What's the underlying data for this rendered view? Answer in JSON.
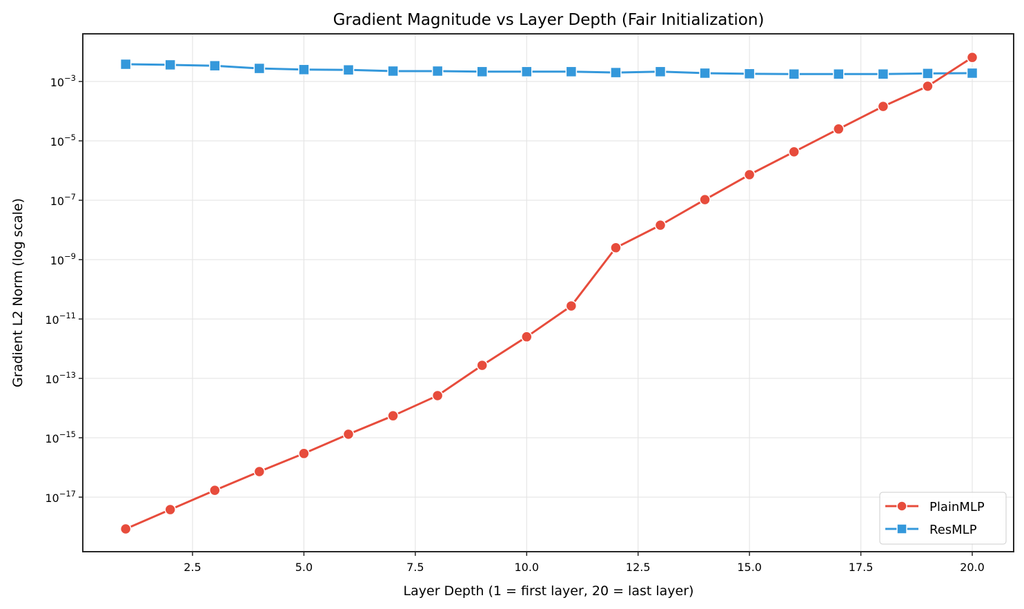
{
  "chart_data": {
    "type": "line",
    "title": "Gradient Magnitude vs Layer Depth (Fair Initialization)",
    "xlabel": "Layer Depth (1 = first layer, 20 = last layer)",
    "ylabel": "Gradient L2 Norm (log scale)",
    "yscale": "log",
    "x": [
      1,
      2,
      3,
      4,
      5,
      6,
      7,
      8,
      9,
      10,
      11,
      12,
      13,
      14,
      15,
      16,
      17,
      18,
      19,
      20
    ],
    "xticks": [
      "2.5",
      "5.0",
      "7.5",
      "10.0",
      "12.5",
      "15.0",
      "17.5",
      "20.0"
    ],
    "xtick_values": [
      2.5,
      5.0,
      7.5,
      10.0,
      12.5,
      15.0,
      17.5,
      20.0
    ],
    "yticks": [
      {
        "base": "10",
        "exp": "−3",
        "value": 0.001
      },
      {
        "base": "10",
        "exp": "−5",
        "value": 1e-05
      },
      {
        "base": "10",
        "exp": "−7",
        "value": 1e-07
      },
      {
        "base": "10",
        "exp": "−9",
        "value": 1e-09
      },
      {
        "base": "10",
        "exp": "−11",
        "value": 1e-11
      },
      {
        "base": "10",
        "exp": "−13",
        "value": 1e-13
      },
      {
        "base": "10",
        "exp": "−15",
        "value": 1e-15
      },
      {
        "base": "10",
        "exp": "−17",
        "value": 1e-17
      }
    ],
    "xlim": [
      0.05,
      20.95
    ],
    "ylim_log10": [
      -18.6,
      -1.4
    ],
    "grid": true,
    "legend_position": "lower right",
    "series": [
      {
        "name": "PlainMLP",
        "color": "#e74c3c",
        "marker": "circle",
        "log10_values": [
          -18.07,
          -17.42,
          -16.77,
          -16.14,
          -15.53,
          -14.88,
          -14.26,
          -13.58,
          -12.56,
          -11.6,
          -10.56,
          -8.6,
          -7.84,
          -6.98,
          -6.14,
          -5.37,
          -4.6,
          -3.84,
          -3.16,
          -2.19
        ],
        "values": [
          8.5e-19,
          3.8e-18,
          1.7e-17,
          7.2e-17,
          3e-16,
          1.3e-15,
          5.5e-15,
          2.6e-14,
          2.8e-13,
          2.5e-12,
          2.8e-11,
          2.5e-09,
          1.4e-08,
          1e-07,
          7.2e-07,
          4.3e-06,
          2.5e-05,
          0.00014,
          0.00069,
          0.0065
        ]
      },
      {
        "name": "ResMLP",
        "color": "#3498db",
        "marker": "square",
        "log10_values": [
          -2.42,
          -2.44,
          -2.47,
          -2.56,
          -2.6,
          -2.61,
          -2.65,
          -2.65,
          -2.67,
          -2.67,
          -2.67,
          -2.7,
          -2.67,
          -2.72,
          -2.74,
          -2.75,
          -2.75,
          -2.75,
          -2.73,
          -2.72
        ],
        "values": [
          0.0038,
          0.0036,
          0.0034,
          0.0028,
          0.0025,
          0.0025,
          0.0022,
          0.0022,
          0.0021,
          0.0021,
          0.0021,
          0.002,
          0.0021,
          0.0019,
          0.0018,
          0.0018,
          0.0018,
          0.0018,
          0.0019,
          0.0019
        ]
      }
    ]
  }
}
